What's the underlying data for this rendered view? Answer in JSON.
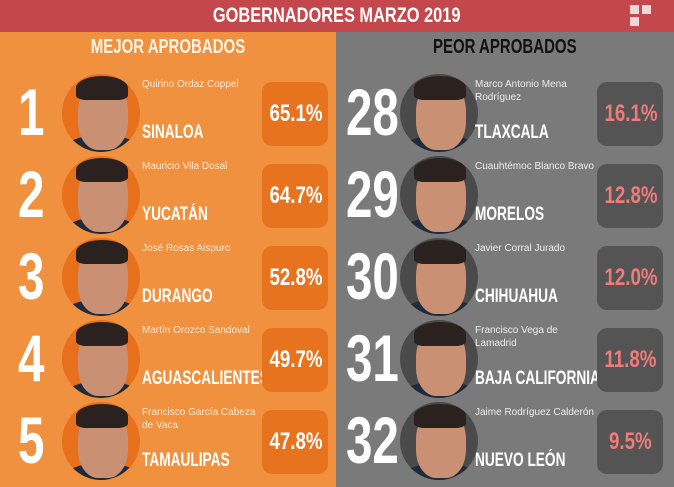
{
  "header": {
    "title": "GOBERNADORES MARZO 2019"
  },
  "colors": {
    "header": "#c4474b",
    "best": "#f0913f",
    "worst": "#7a7a7a",
    "best_box": "#e7731f",
    "worst_box": "#545454",
    "worst_value": "#ef7b7b"
  },
  "best": {
    "title": "MEJOR APROBADOS",
    "items": [
      {
        "rank": "1",
        "name": "Quirino Ordaz Coppel",
        "state": "SINALOA",
        "approval": "65.1%"
      },
      {
        "rank": "2",
        "name": "Mauricio Vila Dosal",
        "state": "YUCATÁN",
        "approval": "64.7%"
      },
      {
        "rank": "3",
        "name": "José Rosas Aispuro",
        "state": "DURANGO",
        "approval": "52.8%"
      },
      {
        "rank": "4",
        "name": "Martín Orozco Sandoval",
        "state": "AGUASCALIENTES",
        "approval": "49.7%"
      },
      {
        "rank": "5",
        "name": "Francisco García Cabeza de Vaca",
        "state": "TAMAULIPAS",
        "approval": "47.8%"
      }
    ]
  },
  "worst": {
    "title": "PEOR APROBADOS",
    "items": [
      {
        "rank": "28",
        "name": "Marco Antonio Mena Rodríguez",
        "state": "TLAXCALA",
        "approval": "16.1%"
      },
      {
        "rank": "29",
        "name": "Cuauhtémoc Blanco Bravo",
        "state": "MORELOS",
        "approval": "12.8%"
      },
      {
        "rank": "30",
        "name": "Javier Corral Jurado",
        "state": "CHIHUAHUA",
        "approval": "12.0%"
      },
      {
        "rank": "31",
        "name": "Francisco Vega de Lamadrid",
        "state": "BAJA CALIFORNIA",
        "approval": "11.8%"
      },
      {
        "rank": "32",
        "name": "Jaime Rodríguez Calderón",
        "state": "NUEVO LEÓN",
        "approval": "9.5%"
      }
    ]
  }
}
